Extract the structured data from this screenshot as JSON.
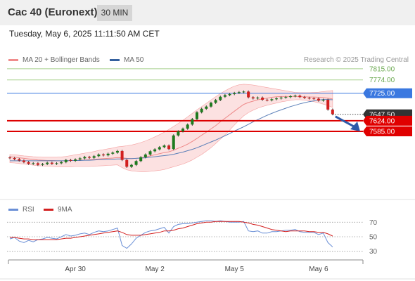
{
  "header": {
    "title": "Cac 40 (Euronext)",
    "interval": "30 MIN",
    "datetime": "Tuesday, May 6, 2025 11:11:50 AM CET"
  },
  "legend": {
    "ma20": {
      "label": "MA 20 + Bollinger Bands",
      "color": "#f08c8c"
    },
    "ma50": {
      "label": "MA 50",
      "color": "#34609e"
    },
    "credit": "Research © 2025 Trading Central"
  },
  "rsi_legend": {
    "rsi": {
      "label": "RSI",
      "color": "#6a8fd6"
    },
    "ma9": {
      "label": "9MA",
      "color": "#d32020"
    }
  },
  "chart_data": [
    {
      "type": "candlestick",
      "title": "Cac 40 (Euronext)",
      "ylim": [
        7340,
        7830
      ],
      "x_ticks": [
        "Apr 30",
        "May 2",
        "May 5",
        "May 6"
      ],
      "levels": [
        {
          "value": 7815.0,
          "label": "7815.00",
          "kind": "resistance-outer",
          "color": "#a8d08d"
        },
        {
          "value": 7774.0,
          "label": "7774.00",
          "kind": "resistance-mid",
          "color": "#a8d08d"
        },
        {
          "value": 7725.0,
          "label": "7725.00",
          "kind": "pivot",
          "color": "#3a78e0"
        },
        {
          "value": 7647.5,
          "label": "7647.50",
          "kind": "last-price",
          "color": "#333333"
        },
        {
          "value": 7624.0,
          "label": "7624.00",
          "kind": "support",
          "color": "#dd0000"
        },
        {
          "value": 7585.0,
          "label": "7585.00",
          "kind": "support",
          "color": "#dd0000"
        }
      ],
      "last_price": 7647.5,
      "forecast": "down",
      "close": [
        7487,
        7483,
        7478,
        7472,
        7466,
        7468,
        7462,
        7465,
        7470,
        7466,
        7468,
        7472,
        7480,
        7477,
        7482,
        7486,
        7491,
        7488,
        7494,
        7500,
        7497,
        7503,
        7507,
        7513,
        7480,
        7455,
        7462,
        7476,
        7490,
        7500,
        7512,
        7519,
        7527,
        7533,
        7520,
        7570,
        7585,
        7595,
        7610,
        7630,
        7655,
        7668,
        7676,
        7690,
        7700,
        7712,
        7718,
        7722,
        7726,
        7729,
        7731,
        7710,
        7706,
        7709,
        7701,
        7699,
        7703,
        7706,
        7709,
        7711,
        7714,
        7716,
        7711,
        7708,
        7706,
        7705,
        7698,
        7701,
        7665,
        7648
      ],
      "ma20": [
        7492,
        7490,
        7488,
        7486,
        7484,
        7482,
        7480,
        7479,
        7478,
        7478,
        7477,
        7477,
        7477,
        7478,
        7478,
        7479,
        7480,
        7481,
        7482,
        7484,
        7485,
        7486,
        7487,
        7489,
        7488,
        7486,
        7485,
        7486,
        7488,
        7491,
        7495,
        7499,
        7503,
        7507,
        7510,
        7516,
        7523,
        7530,
        7538,
        7548,
        7559,
        7571,
        7582,
        7594,
        7606,
        7620,
        7633,
        7646,
        7659,
        7672,
        7684,
        7691,
        7696,
        7701,
        7704,
        7707,
        7710,
        7712,
        7713,
        7713,
        7713,
        7713,
        7712,
        7712,
        7711,
        7711,
        7710,
        7709,
        7707,
        7704
      ],
      "ma50": [
        7477,
        7477,
        7477,
        7477,
        7477,
        7477,
        7477,
        7477,
        7477,
        7477,
        7477,
        7477,
        7477,
        7478,
        7478,
        7478,
        7479,
        7479,
        7480,
        7481,
        7481,
        7482,
        7483,
        7484,
        7484,
        7485,
        7485,
        7486,
        7487,
        7488,
        7490,
        7492,
        7494,
        7496,
        7498,
        7501,
        7505,
        7509,
        7514,
        7519,
        7525,
        7532,
        7539,
        7546,
        7553,
        7561,
        7569,
        7577,
        7586,
        7594,
        7602,
        7611,
        7620,
        7628,
        7636,
        7644,
        7651,
        7658,
        7664,
        7670,
        7676,
        7681,
        7686,
        7690,
        7694,
        7697,
        7700,
        7702,
        7702,
        7701
      ],
      "bb_upper": [
        7500,
        7499,
        7497,
        7495,
        7494,
        7492,
        7491,
        7490,
        7490,
        7490,
        7490,
        7491,
        7493,
        7496,
        7499,
        7502,
        7505,
        7508,
        7511,
        7515,
        7518,
        7521,
        7524,
        7528,
        7530,
        7532,
        7535,
        7539,
        7544,
        7550,
        7557,
        7565,
        7573,
        7582,
        7592,
        7603,
        7614,
        7626,
        7638,
        7651,
        7664,
        7676,
        7688,
        7700,
        7712,
        7724,
        7734,
        7743,
        7751,
        7756,
        7758,
        7757,
        7755,
        7752,
        7749,
        7746,
        7743,
        7740,
        7737,
        7734,
        7731,
        7728,
        7727,
        7727,
        7727,
        7728,
        7729,
        7731,
        7733,
        7735
      ],
      "bb_lower": [
        7470,
        7469,
        7467,
        7465,
        7463,
        7461,
        7459,
        7458,
        7457,
        7456,
        7455,
        7455,
        7455,
        7455,
        7456,
        7456,
        7456,
        7456,
        7457,
        7458,
        7459,
        7460,
        7461,
        7462,
        7452,
        7444,
        7440,
        7438,
        7437,
        7437,
        7438,
        7440,
        7442,
        7445,
        7450,
        7455,
        7460,
        7465,
        7472,
        7480,
        7490,
        7500,
        7512,
        7525,
        7540,
        7556,
        7572,
        7590,
        7608,
        7626,
        7642,
        7654,
        7663,
        7670,
        7676,
        7681,
        7685,
        7689,
        7693,
        7696,
        7699,
        7701,
        7701,
        7700,
        7697,
        7694,
        7690,
        7685,
        7680,
        7673
      ]
    },
    {
      "type": "line",
      "title": "RSI",
      "ylim": [
        20,
        80
      ],
      "y_ticks": [
        70,
        50,
        30
      ],
      "series": [
        {
          "name": "RSI",
          "color": "#6a8fd6",
          "values": [
            47,
            49,
            44,
            42,
            45,
            43,
            46,
            47,
            49,
            48,
            47,
            50,
            53,
            51,
            52,
            54,
            55,
            53,
            56,
            58,
            57,
            58,
            60,
            62,
            38,
            34,
            40,
            48,
            52,
            56,
            58,
            59,
            61,
            63,
            55,
            64,
            67,
            68,
            68,
            69,
            70,
            71,
            72,
            72,
            71,
            72,
            71,
            70,
            70,
            70,
            71,
            58,
            57,
            58,
            55,
            55,
            57,
            57,
            58,
            59,
            59,
            60,
            57,
            56,
            56,
            56,
            53,
            55,
            42,
            36
          ]
        },
        {
          "name": "9MA",
          "color": "#d32020",
          "values": [
            49,
            49,
            48,
            47,
            47,
            46,
            46,
            46,
            46,
            46,
            46,
            47,
            48,
            48,
            49,
            50,
            51,
            52,
            53,
            54,
            55,
            56,
            57,
            58,
            56,
            53,
            52,
            52,
            52,
            53,
            54,
            55,
            56,
            58,
            58,
            59,
            61,
            62,
            64,
            66,
            68,
            69,
            70,
            70,
            71,
            71,
            71,
            71,
            71,
            71,
            70,
            69,
            67,
            66,
            64,
            62,
            60,
            59,
            58,
            57,
            58,
            58,
            58,
            58,
            57,
            57,
            56,
            56,
            54,
            51
          ]
        }
      ]
    }
  ]
}
